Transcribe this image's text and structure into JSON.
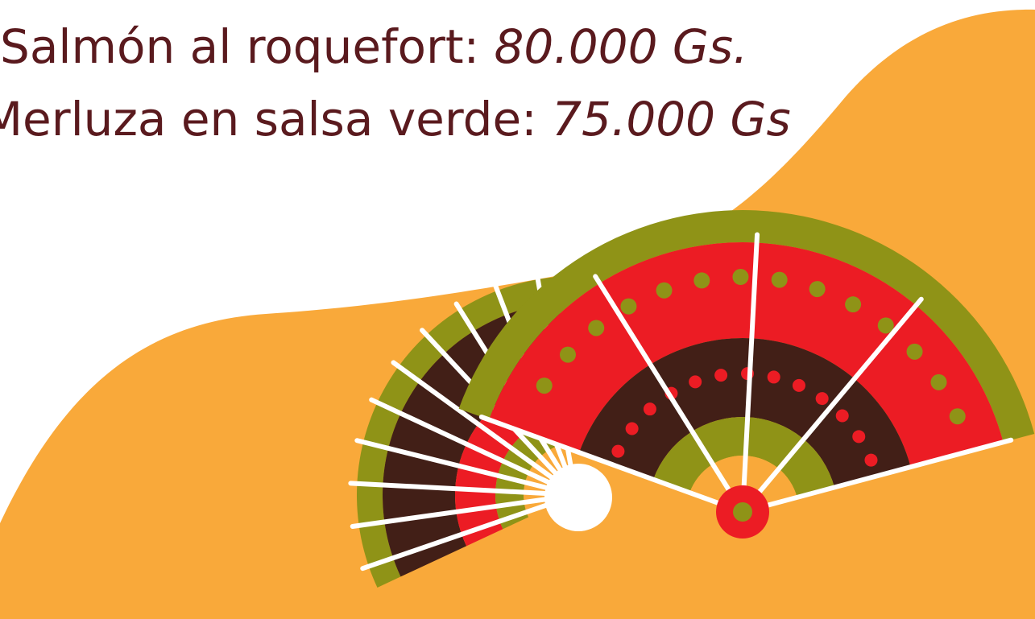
{
  "menu": {
    "items": [
      {
        "name": "Salmón al roquefort:",
        "price": "80.000 Gs."
      },
      {
        "name": "Merluza en salsa verde:",
        "price": "75.000 Gs"
      }
    ]
  }
}
